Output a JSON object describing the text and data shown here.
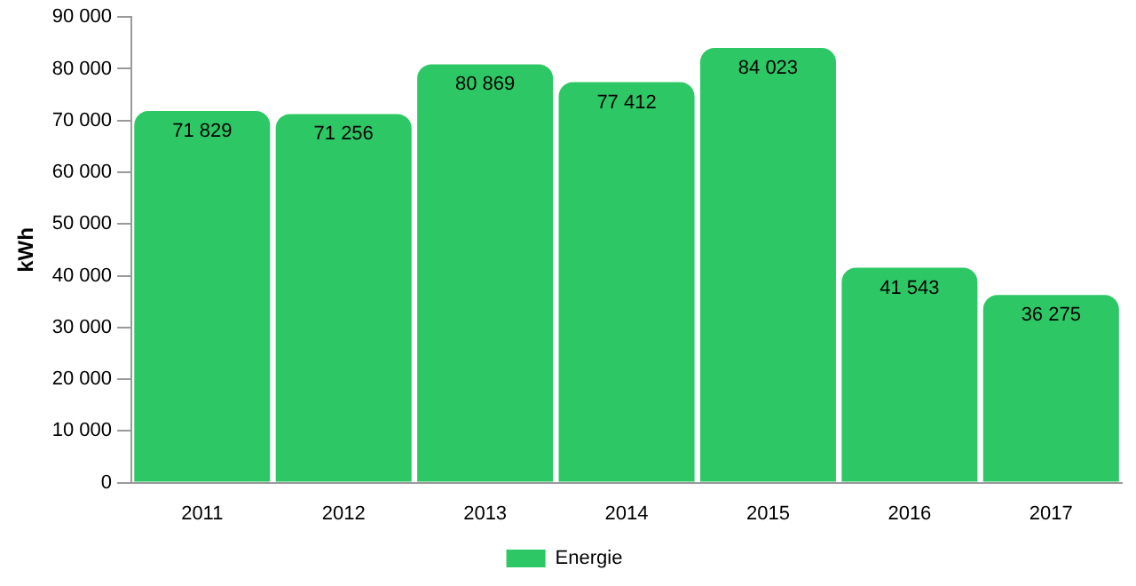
{
  "chart_data": {
    "type": "bar",
    "ylabel": "kWh",
    "categories": [
      "2011",
      "2012",
      "2013",
      "2014",
      "2015",
      "2016",
      "2017"
    ],
    "series": [
      {
        "name": "Energie",
        "color": "#2dc865",
        "values": [
          71829,
          71256,
          80869,
          77412,
          84023,
          41543,
          36275
        ],
        "value_labels": [
          "71 829",
          "71 256",
          "80 869",
          "77 412",
          "84 023",
          "41 543",
          "36 275"
        ]
      }
    ],
    "ylim": [
      0,
      90000
    ],
    "yticks": [
      {
        "value": 0,
        "label": "0"
      },
      {
        "value": 10000,
        "label": "10 000"
      },
      {
        "value": 20000,
        "label": "20 000"
      },
      {
        "value": 30000,
        "label": "30 000"
      },
      {
        "value": 40000,
        "label": "40 000"
      },
      {
        "value": 50000,
        "label": "50 000"
      },
      {
        "value": 60000,
        "label": "60 000"
      },
      {
        "value": 70000,
        "label": "70 000"
      },
      {
        "value": 80000,
        "label": "80 000"
      },
      {
        "value": 90000,
        "label": "90 000"
      }
    ],
    "grid": false,
    "legend": "bottom"
  }
}
